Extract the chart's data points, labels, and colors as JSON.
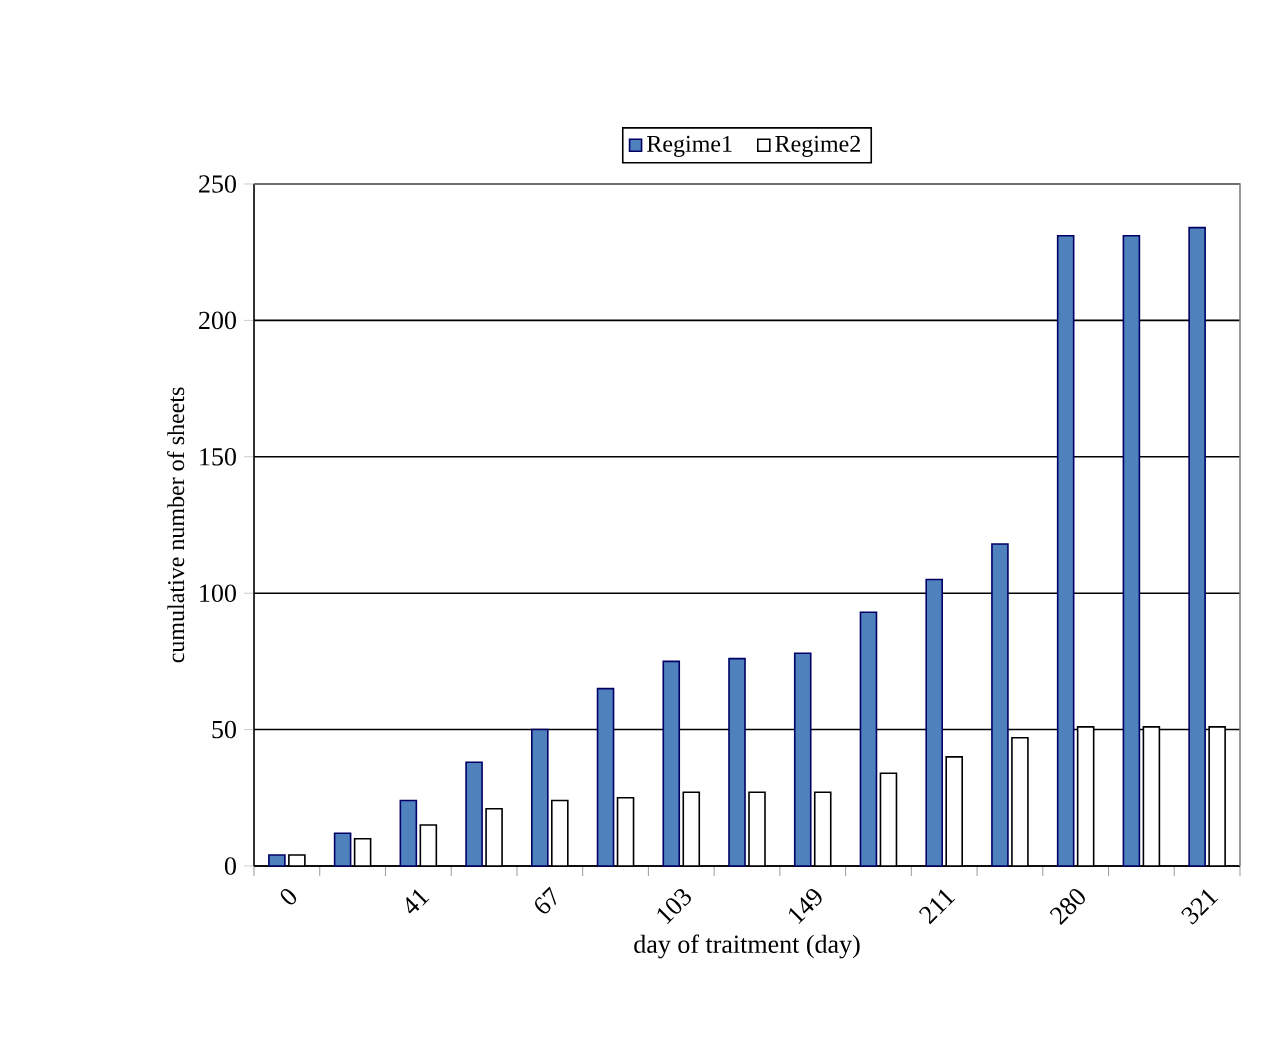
{
  "chart_data": {
    "type": "bar",
    "xlabel": "day of traitment (day)",
    "ylabel": "cumulative number of sheets",
    "categories": [
      "0",
      null,
      "41",
      null,
      "67",
      null,
      "103",
      null,
      "149",
      null,
      "211",
      null,
      "280",
      null,
      "321"
    ],
    "series": [
      {
        "name": "Regime1",
        "color": "#4f81bd",
        "values": [
          4,
          12,
          24,
          38,
          50,
          65,
          75,
          76,
          78,
          93,
          105,
          118,
          231,
          231,
          234
        ]
      },
      {
        "name": "Regime2",
        "color": "#ffffff",
        "values": [
          4,
          10,
          15,
          21,
          24,
          25,
          27,
          27,
          27,
          34,
          40,
          47,
          51,
          51,
          51
        ]
      }
    ],
    "ylim": [
      0,
      250
    ],
    "yticks": [
      0,
      50,
      100,
      150,
      200,
      250
    ],
    "grid": "y",
    "legend": "top"
  }
}
